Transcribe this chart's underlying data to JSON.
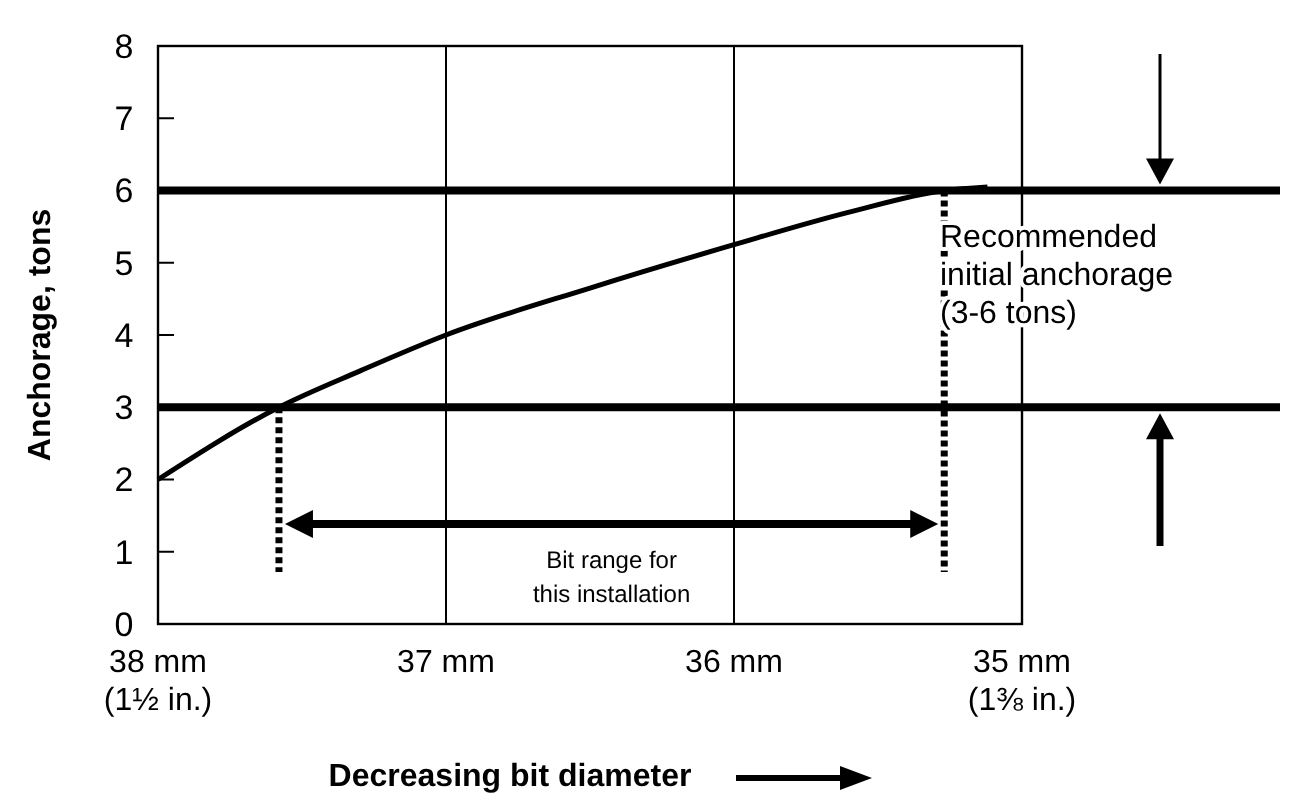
{
  "chart_data": {
    "type": "line",
    "xlabel": "Decreasing bit diameter",
    "ylabel": "Anchorage, tons",
    "x": [
      38,
      37.58,
      37.3,
      37,
      36.5,
      36,
      35.6,
      35.27,
      35.12
    ],
    "series": [
      {
        "color": "#000000",
        "values": [
          2,
          3,
          3.5,
          4,
          4.65,
          5.25,
          5.7,
          6,
          6.05
        ]
      }
    ],
    "xlim": [
      38,
      35
    ],
    "xticks": [
      {
        "value": 38,
        "label": "38 mm\n(1½ in.)"
      },
      {
        "value": 37,
        "label": "37 mm"
      },
      {
        "value": 36,
        "label": "36 mm"
      },
      {
        "value": 35,
        "label": "35 mm\n(1⅜ in.)"
      }
    ],
    "ylim": [
      0,
      8
    ],
    "yticks": [
      0,
      1,
      2,
      3,
      4,
      5,
      6,
      7,
      8
    ],
    "grid": "x",
    "marker": "none",
    "line_style": "solid",
    "ref_lines": [
      {
        "axis": "y",
        "value": 6,
        "line_style": "solid"
      },
      {
        "axis": "y",
        "value": 3,
        "line_style": "solid"
      },
      {
        "axis": "x",
        "value": 37.58,
        "line_style": "dotted"
      },
      {
        "axis": "x",
        "value": 35.27,
        "line_style": "dotted"
      }
    ],
    "annotations": [
      "Bit range for this installation",
      "Recommended initial anchorage (3-6 tons)"
    ]
  }
}
